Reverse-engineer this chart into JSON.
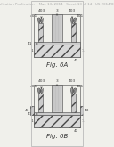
{
  "background_color": "#f0f0eb",
  "header_text": "Patent Application Publication    Mar. 13, 2014   Sheet 13 of 14   US 2014/0068856 P1",
  "header_fontsize": 2.8,
  "fig6a_label": "Fig. 6A",
  "fig6b_label": "Fig. 6B",
  "label_fontsize": 5.0,
  "drawing_color": "#444444",
  "line_width": 0.4,
  "small_fs": 3.2
}
